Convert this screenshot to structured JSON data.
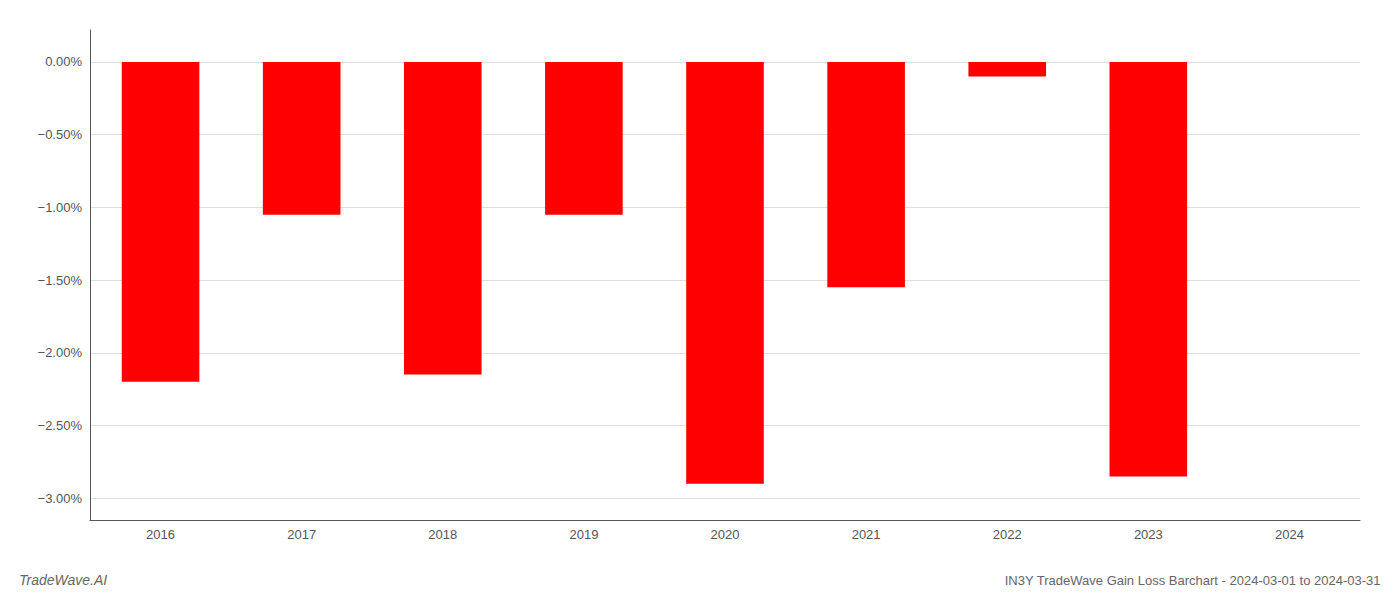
{
  "chart_data": {
    "type": "bar",
    "title": "IN3Y TradeWave Gain Loss Barchart - 2024-03-01 to 2024-03-31",
    "annotations": [
      "TradeWave.AI"
    ],
    "categories": [
      "2016",
      "2017",
      "2018",
      "2019",
      "2020",
      "2021",
      "2022",
      "2023",
      "2024"
    ],
    "values": [
      -2.2,
      -1.05,
      -2.15,
      -1.05,
      -2.9,
      -1.55,
      -0.1,
      -2.85,
      null
    ],
    "color": "#ff0000",
    "ylim": [
      -3.15,
      0.22
    ],
    "yticks": [
      {
        "value": 0.0,
        "label": "0.00%"
      },
      {
        "value": -0.5,
        "label": "−0.50%"
      },
      {
        "value": -1.0,
        "label": "−1.00%"
      },
      {
        "value": -1.5,
        "label": "−1.50%"
      },
      {
        "value": -2.0,
        "label": "−2.00%"
      },
      {
        "value": -2.5,
        "label": "−2.50%"
      },
      {
        "value": -3.0,
        "label": "−3.00%"
      }
    ],
    "grid": true
  }
}
